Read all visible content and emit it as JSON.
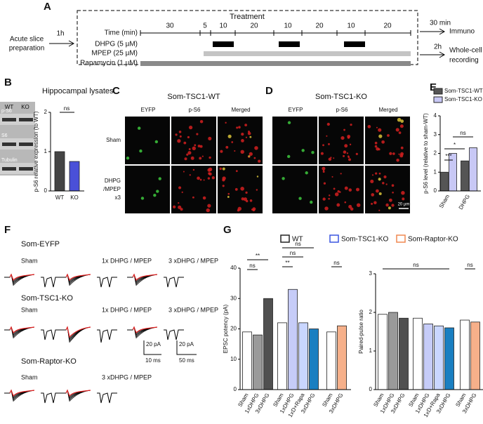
{
  "panel_labels": [
    "A",
    "B",
    "C",
    "D",
    "E",
    "F",
    "G"
  ],
  "a": {
    "start": [
      "Acute slice",
      "preparation"
    ],
    "first_interval": "1h",
    "treatment": "Treatment",
    "rows": [
      "Time (min)",
      "DHPG (5 µM)",
      "MPEP (25 µM)",
      "Rapamycin (1 µM)"
    ],
    "times": [
      30,
      5,
      10,
      20,
      10,
      20,
      10,
      20
    ],
    "out1_time": "30 min",
    "out1": "Immuno",
    "out2_time": "2h",
    "out2": [
      "Whole-cell",
      "recording"
    ]
  },
  "b": {
    "title": "Hippocampal lysates",
    "lanes": [
      "WT",
      "KO"
    ],
    "blots": [
      "p-S6",
      "S6",
      "Tubulin"
    ]
  },
  "c": {
    "title": "Som-TSC1-WT",
    "columns": [
      "EYFP",
      "p-S6",
      "Merged"
    ],
    "rows": [
      [
        "Sham"
      ],
      [
        "DHPG",
        "/MPEP",
        "x3"
      ]
    ]
  },
  "d": {
    "title": "Som-TSC1-KO",
    "columns": [
      "EYFP",
      "p-S6",
      "Merged"
    ],
    "scale": "20 µm"
  },
  "f": {
    "groups": [
      {
        "name": "Som-EYFP",
        "conditions": [
          "Sham",
          "1x DHPG / MPEP",
          "3 xDHPG / MPEP"
        ]
      },
      {
        "name": "Som-TSC1-KO",
        "conditions": [
          "Sham",
          "1x DHPG / MPEP",
          "3 xDHPG / MPEP"
        ]
      },
      {
        "name": "Som-Raptor-KO",
        "conditions": [
          "Sham",
          "3 xDHPG / MPEP"
        ]
      }
    ],
    "scale": [
      "20 pA",
      "10 ms",
      "20 pA",
      "50 ms"
    ]
  },
  "g": {
    "legend": [
      "WT",
      "Som-TSC1-KO",
      "Som-Raptor-KO"
    ],
    "legend_colors": [
      "#222",
      "#3a55e0",
      "#f08850"
    ]
  },
  "chart_data": [
    {
      "type": "bar",
      "categories": [
        "WT",
        "KO"
      ],
      "values": [
        1.0,
        0.75
      ],
      "colors": [
        "#444444",
        "#4a50d8"
      ],
      "ylim": [
        0,
        2
      ],
      "yticks": [
        0,
        1,
        2
      ],
      "ylabel": "p-S6 relative expression (to WT)",
      "annotations": [
        "ns"
      ]
    },
    {
      "type": "bar",
      "categories": [
        "Sham",
        "DHPG"
      ],
      "series": [
        {
          "name": "Som-TSC1-WT",
          "color": "#555555",
          "values": [
            1.0,
            1.6
          ]
        },
        {
          "name": "Som-TSC1-KO",
          "color": "#c8c8f5",
          "values": [
            2.0,
            2.3
          ]
        }
      ],
      "ylim": [
        0,
        4
      ],
      "yticks": [
        0,
        1,
        2,
        3,
        4
      ],
      "ylabel": "p-S6 level (relative to sham-WT)",
      "annotations": [
        "***",
        "*",
        "ns"
      ]
    },
    {
      "type": "bar",
      "categories": [
        "Sham",
        "1xDHPG",
        "3xDHPG",
        "Sham",
        "1xDHPG",
        "1xD+Rapa",
        "3xDHPG",
        "Sham",
        "3xDHPG"
      ],
      "values": [
        19,
        18,
        30,
        22,
        33,
        22,
        20,
        19,
        21
      ],
      "colors": [
        "#ffffff",
        "#9a9a9a",
        "#505050",
        "#ffffff",
        "#c6ccf8",
        "#c9d6ff",
        "#1a7fc1",
        "#ffffff",
        "#f6b08a"
      ],
      "ylim": [
        0,
        40
      ],
      "yticks": [
        0,
        10,
        20,
        30,
        40
      ],
      "ylabel": "EPSC potency (pA)",
      "annotations": [
        "**",
        "ns",
        "ns",
        "ns",
        "**",
        "ns"
      ]
    },
    {
      "type": "bar",
      "categories": [
        "Sham",
        "1xDHPG",
        "3xDHPG",
        "Sham",
        "1xDHPG",
        "1xD+Rapa",
        "3xDHPG",
        "Sham",
        "3xDHPG"
      ],
      "values": [
        1.95,
        2.0,
        1.85,
        1.85,
        1.7,
        1.65,
        1.6,
        1.8,
        1.75
      ],
      "colors": [
        "#ffffff",
        "#9a9a9a",
        "#505050",
        "#ffffff",
        "#c6ccf8",
        "#c9d6ff",
        "#1a7fc1",
        "#ffffff",
        "#f6b08a"
      ],
      "ylim": [
        0,
        3
      ],
      "yticks": [
        0,
        1,
        2,
        3
      ],
      "ylabel": "Paired-pulse ratio",
      "annotations": [
        "ns",
        "ns"
      ]
    }
  ]
}
